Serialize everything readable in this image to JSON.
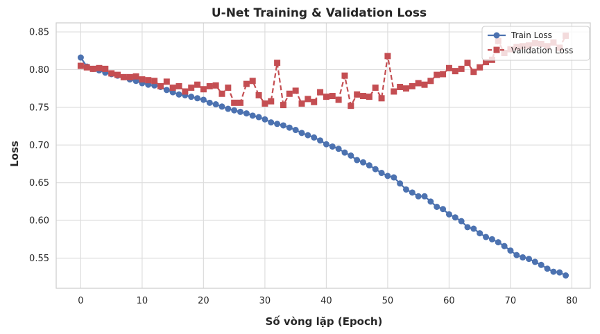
{
  "chart_data": {
    "type": "line",
    "title": "U-Net Training & Validation Loss",
    "xlabel": "Số vòng lặp (Epoch)",
    "ylabel": "Loss",
    "xlim": [
      -4,
      83
    ],
    "ylim": [
      0.51,
      0.862
    ],
    "xticks": [
      0,
      10,
      20,
      30,
      40,
      50,
      60,
      70,
      80
    ],
    "yticks": [
      0.55,
      0.6,
      0.65,
      0.7,
      0.75,
      0.8,
      0.85
    ],
    "ytick_labels": [
      "0.55",
      "0.60",
      "0.65",
      "0.70",
      "0.75",
      "0.80",
      "0.85"
    ],
    "grid": true,
    "legend_position": "top-right",
    "series": [
      {
        "name": "Train Loss",
        "color": "#4c72b0",
        "marker": "circle",
        "linestyle": "solid",
        "values": [
          0.816,
          0.804,
          0.801,
          0.799,
          0.796,
          0.794,
          0.792,
          0.79,
          0.787,
          0.785,
          0.782,
          0.78,
          0.779,
          0.777,
          0.773,
          0.77,
          0.767,
          0.766,
          0.764,
          0.762,
          0.76,
          0.756,
          0.754,
          0.751,
          0.748,
          0.746,
          0.744,
          0.742,
          0.739,
          0.737,
          0.734,
          0.73,
          0.728,
          0.726,
          0.723,
          0.72,
          0.716,
          0.713,
          0.71,
          0.706,
          0.701,
          0.698,
          0.695,
          0.69,
          0.686,
          0.68,
          0.677,
          0.673,
          0.668,
          0.663,
          0.659,
          0.657,
          0.649,
          0.641,
          0.637,
          0.632,
          0.632,
          0.625,
          0.618,
          0.615,
          0.608,
          0.604,
          0.599,
          0.591,
          0.589,
          0.583,
          0.578,
          0.575,
          0.571,
          0.566,
          0.56,
          0.554,
          0.551,
          0.549,
          0.545,
          0.541,
          0.536,
          0.532,
          0.531,
          0.527
        ]
      },
      {
        "name": "Validation Loss",
        "color": "#c44e52",
        "marker": "square",
        "linestyle": "dashed",
        "values": [
          0.805,
          0.803,
          0.801,
          0.802,
          0.801,
          0.795,
          0.793,
          0.79,
          0.79,
          0.791,
          0.787,
          0.786,
          0.785,
          0.778,
          0.784,
          0.776,
          0.778,
          0.771,
          0.776,
          0.78,
          0.774,
          0.778,
          0.779,
          0.768,
          0.776,
          0.756,
          0.756,
          0.781,
          0.785,
          0.766,
          0.755,
          0.758,
          0.809,
          0.753,
          0.768,
          0.772,
          0.755,
          0.761,
          0.757,
          0.77,
          0.764,
          0.765,
          0.76,
          0.792,
          0.752,
          0.767,
          0.765,
          0.764,
          0.776,
          0.762,
          0.818,
          0.771,
          0.777,
          0.775,
          0.778,
          0.782,
          0.78,
          0.785,
          0.793,
          0.794,
          0.802,
          0.798,
          0.801,
          0.809,
          0.797,
          0.803,
          0.81,
          0.813,
          0.838,
          0.822,
          0.827,
          0.83,
          0.831,
          0.832,
          0.835,
          0.834,
          0.831,
          0.836,
          0.829,
          0.845
        ]
      }
    ]
  }
}
